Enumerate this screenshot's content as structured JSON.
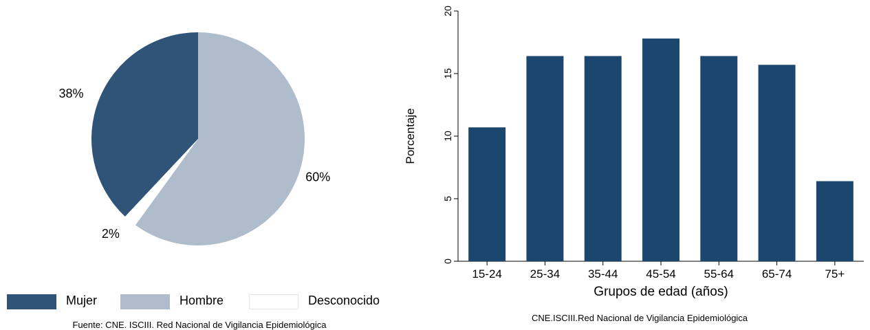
{
  "chart_data": [
    {
      "type": "pie",
      "slices": [
        {
          "label": "Mujer",
          "value": 38,
          "display": "38%",
          "color": "#2f5477"
        },
        {
          "label": "Hombre",
          "value": 60,
          "display": "60%",
          "color": "#aebccb"
        },
        {
          "label": "Desconocido",
          "value": 2,
          "display": "2%",
          "color": "#ffffff"
        }
      ],
      "legend": {
        "position": "bottom",
        "entries": [
          "Mujer",
          "Hombre",
          "Desconocido"
        ]
      },
      "source": "Fuente: CNE. ISCIII. Red Nacional de Vigilancia Epidemiológica"
    },
    {
      "type": "bar",
      "categories": [
        "15-24",
        "25-34",
        "35-44",
        "45-54",
        "55-64",
        "65-74",
        "75+"
      ],
      "values": [
        10.7,
        16.4,
        16.4,
        17.8,
        16.4,
        15.7,
        6.4
      ],
      "color": "#1b476e",
      "xlabel": "Grupos de edad (años)",
      "ylabel": "Porcentaje",
      "ylim": [
        0,
        20
      ],
      "yticks": [
        0,
        5,
        10,
        15,
        20
      ],
      "grid": false,
      "source": "CNE.ISCIII.Red Nacional de Vigilancia Epidemiológica"
    }
  ]
}
